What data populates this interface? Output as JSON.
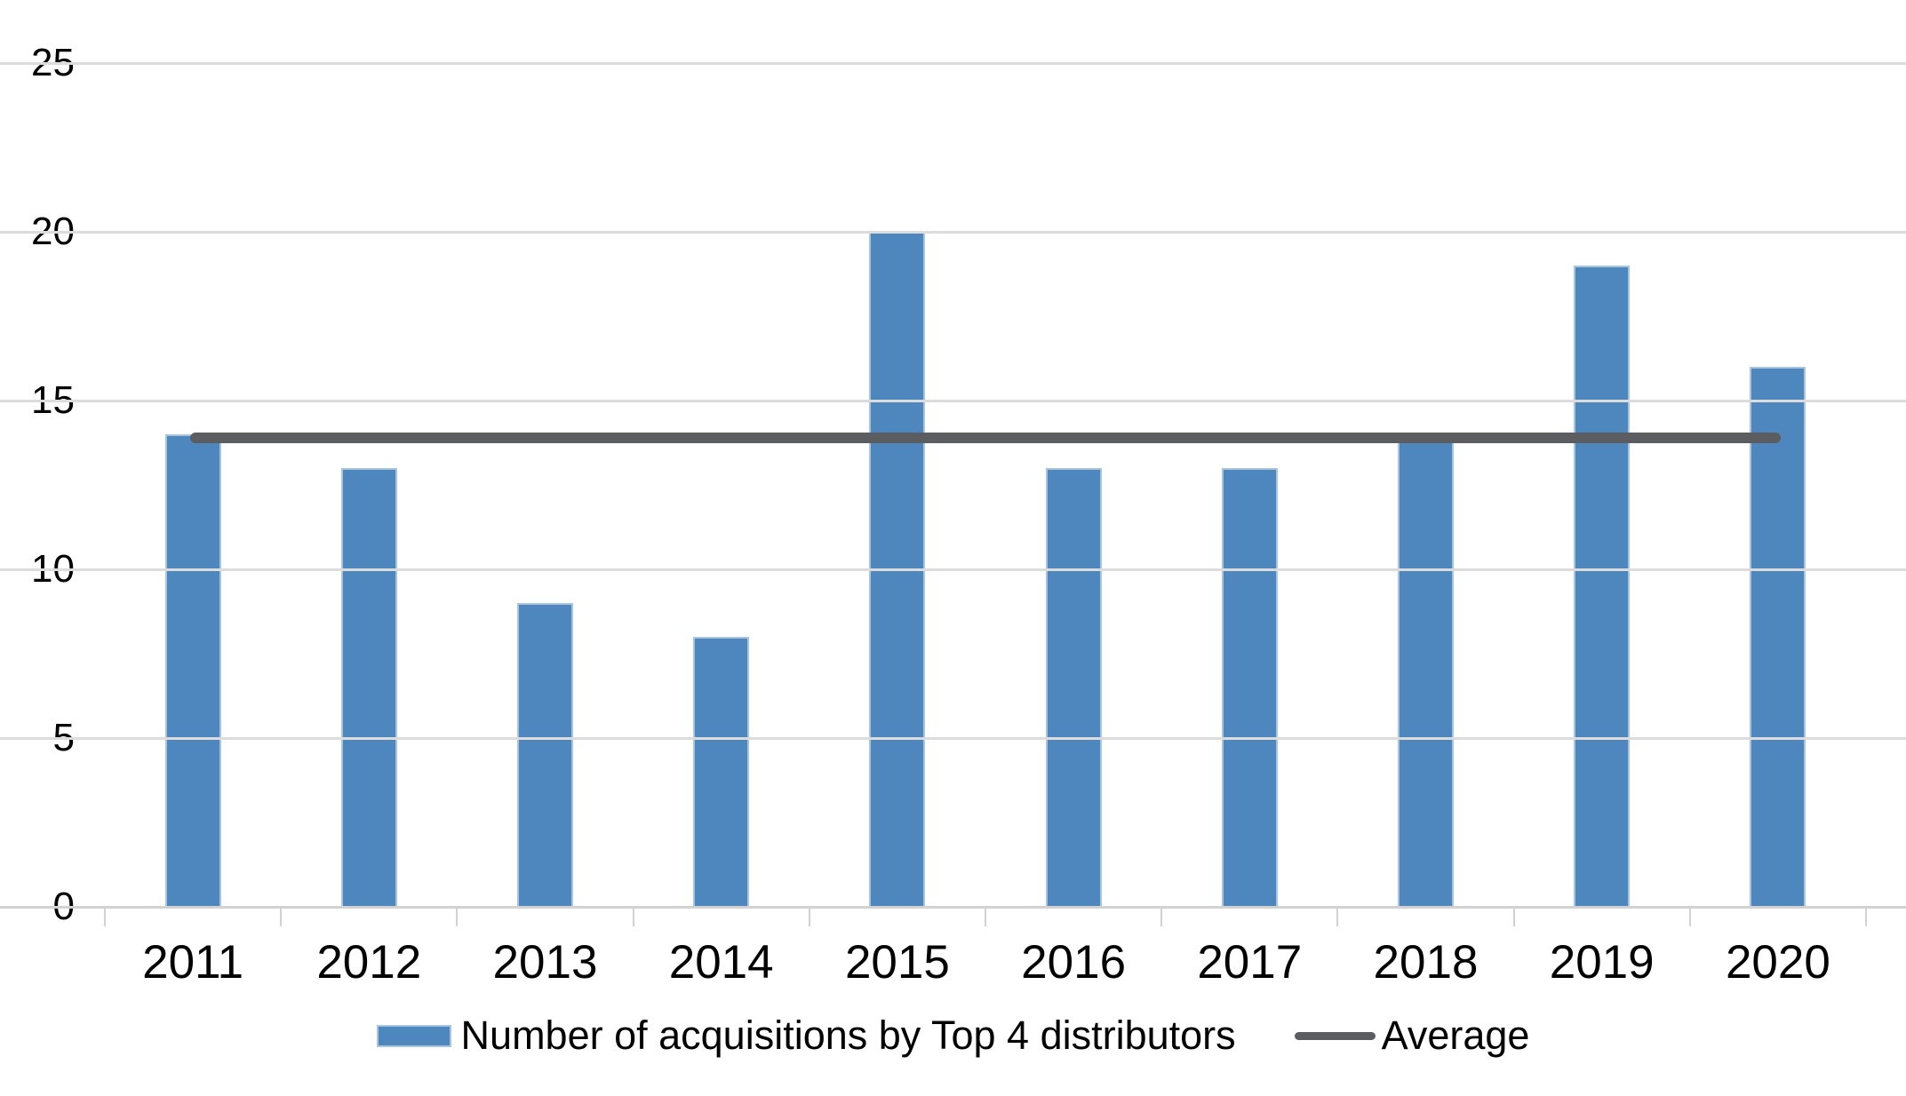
{
  "chart_data": {
    "type": "bar",
    "categories": [
      "2011",
      "2012",
      "2013",
      "2014",
      "2015",
      "2016",
      "2017",
      "2018",
      "2019",
      "2020"
    ],
    "series": [
      {
        "name": "Number of acquisitions by Top 4 distributors",
        "type": "bar",
        "values": [
          14,
          13,
          9,
          8,
          20,
          13,
          13,
          14,
          19,
          16
        ]
      },
      {
        "name": "Average",
        "type": "line",
        "values": [
          13.9,
          13.9,
          13.9,
          13.9,
          13.9,
          13.9,
          13.9,
          13.9,
          13.9,
          13.9
        ]
      }
    ],
    "title": "",
    "xlabel": "",
    "ylabel": "",
    "ylim": [
      0,
      25
    ],
    "yticks": [
      0,
      5,
      10,
      15,
      20,
      25
    ],
    "grid": true,
    "legend_position": "bottom"
  },
  "legend": {
    "items": [
      {
        "label": "Number of acquisitions by Top 4 distributors",
        "swatch": "bar"
      },
      {
        "label": "Average",
        "swatch": "line"
      }
    ]
  },
  "colors": {
    "bar_fill": "#4e87be",
    "bar_border": "#a9c4de",
    "average_line": "#5b5d61",
    "gridline": "#dcdcdc",
    "axis_line": "#d2d2d2",
    "text": "#000000",
    "background": "#ffffff"
  }
}
